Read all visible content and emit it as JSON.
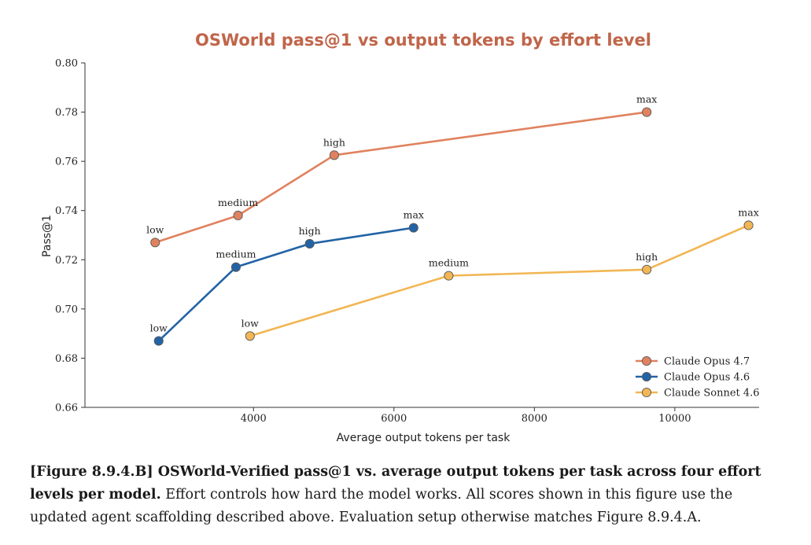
{
  "chart_data": {
    "type": "line",
    "title": "OSWorld pass@1 vs output tokens by effort level",
    "xlabel": "Average output tokens per task",
    "ylabel": "Pass@1",
    "xlim": [
      1600,
      11200
    ],
    "ylim": [
      0.66,
      0.8
    ],
    "xticks": [
      4000,
      6000,
      8000,
      10000
    ],
    "yticks": [
      0.66,
      0.68,
      0.7,
      0.72,
      0.74,
      0.76,
      0.78,
      0.8
    ],
    "legend_position": "bottom-right",
    "series": [
      {
        "name": "Claude Opus 4.7",
        "color": "#e0825f",
        "points": [
          {
            "x": 2600,
            "y": 0.727,
            "label": "low"
          },
          {
            "x": 3780,
            "y": 0.738,
            "label": "medium"
          },
          {
            "x": 5150,
            "y": 0.7625,
            "label": "high"
          },
          {
            "x": 9600,
            "y": 0.78,
            "label": "max"
          }
        ]
      },
      {
        "name": "Claude Opus 4.6",
        "color": "#2263a6",
        "points": [
          {
            "x": 2650,
            "y": 0.687,
            "label": "low"
          },
          {
            "x": 3750,
            "y": 0.717,
            "label": "medium"
          },
          {
            "x": 4800,
            "y": 0.7265,
            "label": "high"
          },
          {
            "x": 6280,
            "y": 0.733,
            "label": "max"
          }
        ]
      },
      {
        "name": "Claude Sonnet 4.6",
        "color": "#f2b654",
        "points": [
          {
            "x": 3950,
            "y": 0.689,
            "label": "low"
          },
          {
            "x": 6780,
            "y": 0.7135,
            "label": "medium"
          },
          {
            "x": 9600,
            "y": 0.716,
            "label": "high"
          },
          {
            "x": 11050,
            "y": 0.734,
            "label": "max"
          }
        ]
      }
    ]
  },
  "caption": {
    "bold": "[Figure 8.9.4.B] OSWorld-Verified pass@1 vs. average output tokens per task across four effort levels per model.",
    "text": " Effort controls how hard the model works. All scores shown in this figure use the updated agent scaffolding described above. Evaluation setup otherwise matches Figure 8.9.4.A."
  }
}
